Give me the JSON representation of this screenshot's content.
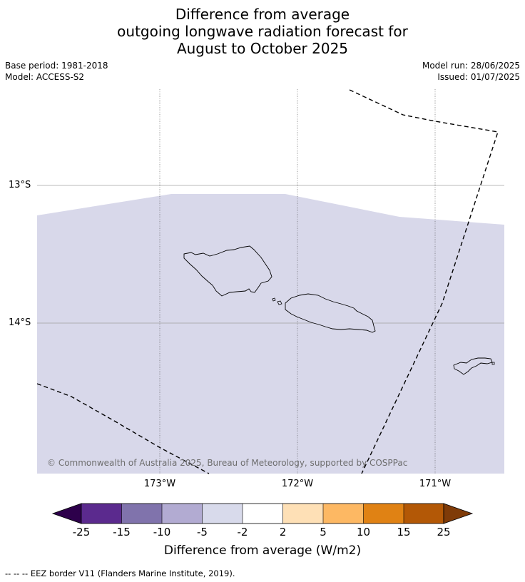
{
  "title_lines": [
    "Difference from average",
    "outgoing longwave radiation forecast for",
    "August to October 2025"
  ],
  "meta": {
    "base_period": "Base period: 1981-2018",
    "model": "Model: ACCESS-S2",
    "model_run": "Model run: 28/06/2025",
    "issued": "Issued: 01/07/2025"
  },
  "map": {
    "latitude_labels": [
      "13°S",
      "14°S"
    ],
    "longitude_labels": [
      "173°W",
      "172°W",
      "171°W"
    ],
    "field_value_class": "-5 to -2",
    "field_color": "#d8d8ea",
    "features": [
      "Savai'i",
      "Upolu",
      "Tutuila",
      "EEZ border"
    ],
    "copyright": "© Commonwealth of Australia 2025, Bureau of Meteorology, supported by COSPPac"
  },
  "colorbar": {
    "tick_labels": [
      "-25",
      "-15",
      "-10",
      "-5",
      "-2",
      "2",
      "5",
      "10",
      "15",
      "25"
    ],
    "colors": [
      "#2d004b",
      "#5b2a8e",
      "#8073ac",
      "#b2abd2",
      "#d8daeb",
      "#ffffff",
      "#fee0b6",
      "#fdb863",
      "#e08214",
      "#b35806",
      "#7f3b08"
    ],
    "label": "Difference from average (W/m2)"
  },
  "footnote": "--  --  -- EEZ border V11 (Flanders Marine Institute, 2019)."
}
